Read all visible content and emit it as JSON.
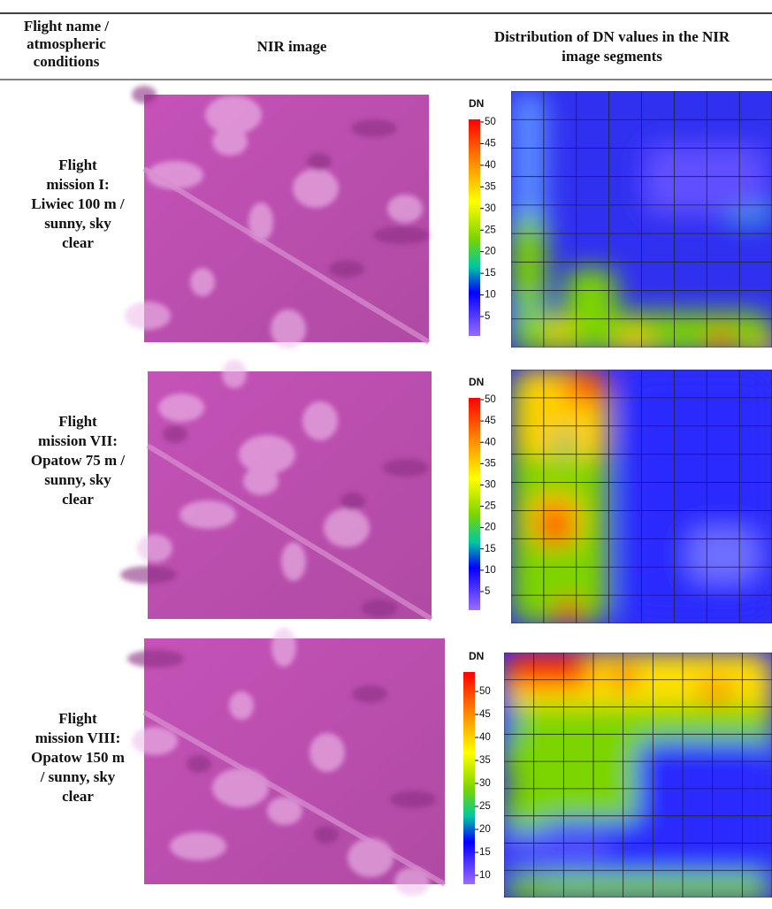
{
  "header": {
    "col1": [
      "Flight name /",
      "atmospheric",
      "conditions"
    ],
    "col2": [
      "NIR image"
    ],
    "col3": [
      "Distribution of DN values in the NIR",
      "image segments"
    ]
  },
  "rows": [
    {
      "label": [
        "Flight",
        "mission I:",
        "Liwiec 100 m /",
        "sunny, sky",
        "clear"
      ],
      "colorbar": {
        "title": "DN",
        "ticks": [
          50,
          45,
          40,
          35,
          30,
          25,
          20,
          15,
          10,
          5
        ]
      }
    },
    {
      "label": [
        "Flight",
        "mission VII:",
        "Opatow 75 m /",
        "sunny, sky",
        "clear"
      ],
      "colorbar": {
        "title": "DN",
        "ticks": [
          50,
          45,
          40,
          35,
          30,
          25,
          20,
          15,
          10,
          5
        ]
      }
    },
    {
      "label": [
        "Flight",
        "mission VIII:",
        "Opatow 150 m",
        "/  sunny, sky",
        "clear"
      ],
      "colorbar": {
        "title": "DN",
        "ticks": [
          50,
          45,
          40,
          35,
          30,
          25,
          20,
          15,
          10
        ]
      }
    }
  ]
}
